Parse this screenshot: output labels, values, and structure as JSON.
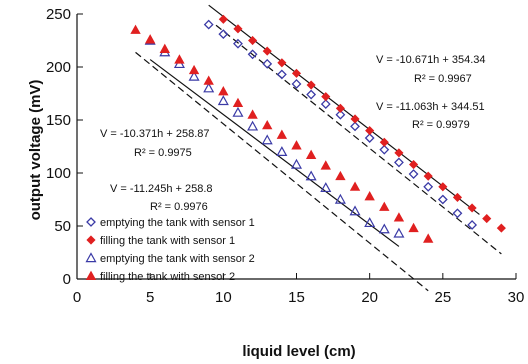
{
  "chart_data": {
    "type": "scatter",
    "xlabel": "liquid level (cm)",
    "ylabel": "output voltage (mV)",
    "xlim": [
      0,
      30
    ],
    "ylim": [
      0,
      250
    ],
    "xticks": [
      0,
      5,
      10,
      15,
      20,
      25,
      30
    ],
    "yticks": [
      0,
      50,
      100,
      150,
      200,
      250
    ],
    "grid": false,
    "legend_position": "bottom-left",
    "series": [
      {
        "name": "emptying the tank with sensor 1",
        "marker": "diamond-open",
        "color": "#3a3aa6",
        "x": [
          9,
          10,
          11,
          12,
          13,
          14,
          15,
          16,
          17,
          18,
          19,
          20,
          21,
          22,
          23,
          24,
          25,
          26,
          27
        ],
        "y": [
          240,
          231,
          222,
          212,
          203,
          193,
          184,
          174,
          165,
          155,
          144,
          133,
          122,
          110,
          99,
          87,
          75,
          62,
          51
        ]
      },
      {
        "name": "filling the tank with sensor 1",
        "marker": "diamond-filled",
        "color": "#e02020",
        "x": [
          10,
          11,
          12,
          13,
          14,
          15,
          16,
          17,
          18,
          19,
          20,
          21,
          22,
          23,
          24,
          25,
          26,
          27,
          28,
          29
        ],
        "y": [
          245,
          236,
          225,
          215,
          204,
          194,
          183,
          172,
          161,
          151,
          140,
          129,
          119,
          108,
          97,
          87,
          77,
          67,
          57,
          48
        ]
      },
      {
        "name": "emptying the tank with sensor 2",
        "marker": "triangle-open",
        "color": "#3a3aa6",
        "x": [
          5,
          6,
          7,
          8,
          9,
          10,
          11,
          12,
          13,
          14,
          15,
          16,
          17,
          18,
          19,
          20,
          21,
          22
        ],
        "y": [
          225,
          214,
          203,
          191,
          180,
          168,
          157,
          144,
          131,
          120,
          108,
          97,
          86,
          75,
          64,
          53,
          47,
          43
        ]
      },
      {
        "name": "filling the tank with sensor 2",
        "marker": "triangle-filled",
        "color": "#e02020",
        "x": [
          4,
          5,
          6,
          7,
          8,
          9,
          10,
          11,
          12,
          13,
          14,
          15,
          16,
          17,
          18,
          19,
          20,
          21,
          22,
          23,
          24
        ],
        "y": [
          235,
          226,
          217,
          207,
          197,
          187,
          177,
          166,
          155,
          145,
          136,
          126,
          117,
          107,
          97,
          87,
          78,
          68,
          58,
          48,
          38
        ]
      }
    ],
    "fit_lines": [
      {
        "style": "solid",
        "slope": -10.671,
        "intercept": 354.34,
        "x": [
          9,
          27.5
        ]
      },
      {
        "style": "dashed",
        "slope": -11.063,
        "intercept": 344.51,
        "x": [
          9.5,
          29
        ]
      },
      {
        "style": "solid",
        "slope": -10.371,
        "intercept": 258.87,
        "x": [
          5,
          22
        ]
      },
      {
        "style": "dashed",
        "slope": -11.245,
        "intercept": 258.8,
        "x": [
          4,
          24
        ]
      }
    ],
    "annotations": [
      {
        "equation": "V = -10.671h + 354.34",
        "r2": "R² = 0.9967"
      },
      {
        "equation": "V = -11.063h + 344.51",
        "r2": "R² = 0.9979"
      },
      {
        "equation": "V = -10.371h + 258.87",
        "r2": "R² = 0.9975"
      },
      {
        "equation": "V = -11.245h + 258.8",
        "r2": "R² = 0.9976"
      }
    ]
  }
}
